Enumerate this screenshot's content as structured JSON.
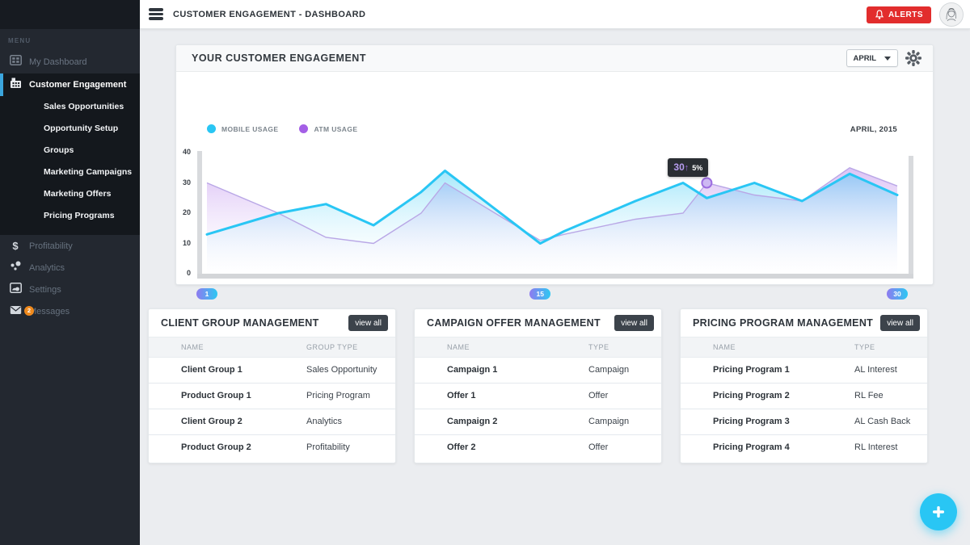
{
  "app": {
    "title": "CUSTOMER ENGAGEMENT - DASHBOARD",
    "alerts_label": "ALERTS"
  },
  "colors": {
    "accent_cyan": "#29C6F4",
    "accent_purple": "#A45FE6",
    "alert_red": "#E22D2D",
    "badge_orange": "#F08A1D",
    "sidebar_accent_blue": "#3BA6DE"
  },
  "sidebar": {
    "menu_label": "MENU",
    "dashboard_item": {
      "label": "My Dashboard",
      "icon": "dashboard-grid"
    },
    "active_item": {
      "label": "Customer Engagement",
      "icon": "building"
    },
    "subitems": [
      "Sales Opportunities",
      "Opportunity Setup",
      "Groups",
      "Marketing Campaigns",
      "Marketing Offers",
      "Pricing Programs"
    ],
    "secondary": [
      {
        "label": "Profitability",
        "icon": "dollar"
      },
      {
        "label": "Analytics",
        "icon": "bubbles"
      },
      {
        "label": "Settings",
        "icon": "image"
      },
      {
        "label": "Messages",
        "icon": "envelope",
        "badge": "2"
      }
    ]
  },
  "chart_card": {
    "title": "YOUR CUSTOMER ENGAGEMENT",
    "month_select": "APRIL",
    "period_label": "APRIL, 2015"
  },
  "chart_data": {
    "type": "area",
    "title": "YOUR CUSTOMER ENGAGEMENT",
    "period_label": "APRIL, 2015",
    "x_days": [
      1,
      4,
      6,
      8,
      10,
      11,
      15,
      16,
      19,
      21,
      22,
      24,
      26,
      28,
      30
    ],
    "series": [
      {
        "name": "MOBILE USAGE",
        "color": "#29C6F4",
        "values": [
          13,
          20,
          23,
          16,
          27,
          34,
          10,
          14,
          24,
          30,
          25,
          30,
          24,
          33,
          26
        ]
      },
      {
        "name": "ATM USAGE",
        "color": "#A45FE6",
        "values": [
          30,
          20,
          12,
          10,
          20,
          30,
          11,
          13,
          18,
          20,
          30,
          26,
          24,
          35,
          29
        ]
      }
    ],
    "ylim": [
      0,
      40
    ],
    "yticks": [
      40,
      30,
      20,
      10,
      0
    ],
    "xticks": [
      1,
      15,
      30
    ],
    "marker": {
      "series": "ATM USAGE",
      "day": 22,
      "value": "30",
      "arrow": "↑",
      "pct": "5%"
    },
    "legend_position": "top-left",
    "grid": false
  },
  "cards": [
    {
      "title": "CLIENT GROUP MANAGEMENT",
      "view_all": "view all",
      "columns": [
        "NAME",
        "GROUP TYPE"
      ],
      "rows": [
        {
          "name": "Client Group 1",
          "type": "Sales Opportunity"
        },
        {
          "name": "Product Group 1",
          "type": "Pricing Program"
        },
        {
          "name": "Client Group 2",
          "type": "Analytics"
        },
        {
          "name": "Product Group 2",
          "type": "Profitability"
        }
      ]
    },
    {
      "title": "CAMPAIGN OFFER MANAGEMENT",
      "view_all": "view all",
      "columns": [
        "NAME",
        "TYPE"
      ],
      "rows": [
        {
          "name": "Campaign 1",
          "type": "Campaign"
        },
        {
          "name": "Offer 1",
          "type": "Offer"
        },
        {
          "name": "Campaign 2",
          "type": "Campaign"
        },
        {
          "name": "Offer 2",
          "type": "Offer"
        }
      ]
    },
    {
      "title": "PRICING PROGRAM MANAGEMENT",
      "view_all": "view all",
      "columns": [
        "NAME",
        "TYPE"
      ],
      "rows": [
        {
          "name": "Pricing Program 1",
          "type": "AL Interest"
        },
        {
          "name": "Pricing Program 2",
          "type": "RL Fee"
        },
        {
          "name": "Pricing Program 3",
          "type": "AL Cash Back"
        },
        {
          "name": "Pricing Program 4",
          "type": "RL Interest"
        }
      ]
    }
  ]
}
